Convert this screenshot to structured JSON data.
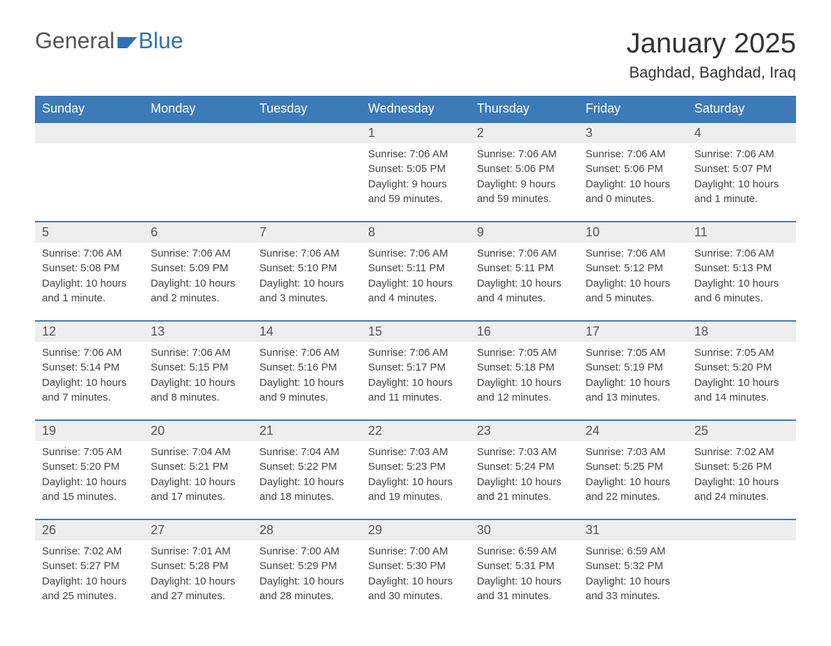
{
  "logo": {
    "text1": "General",
    "text2": "Blue"
  },
  "title": "January 2025",
  "location": "Baghdad, Baghdad, Iraq",
  "colors": {
    "header_bg": "#3d7ab8",
    "row_sep": "#3d7ab8",
    "daynum_bg": "#eeeeee",
    "text": "#333333",
    "logo_blue": "#2e72b5"
  },
  "daynames": [
    "Sunday",
    "Monday",
    "Tuesday",
    "Wednesday",
    "Thursday",
    "Friday",
    "Saturday"
  ],
  "weeks": [
    [
      null,
      null,
      null,
      {
        "n": "1",
        "sr": "Sunrise: 7:06 AM",
        "ss": "Sunset: 5:05 PM",
        "d1": "Daylight: 9 hours",
        "d2": "and 59 minutes."
      },
      {
        "n": "2",
        "sr": "Sunrise: 7:06 AM",
        "ss": "Sunset: 5:06 PM",
        "d1": "Daylight: 9 hours",
        "d2": "and 59 minutes."
      },
      {
        "n": "3",
        "sr": "Sunrise: 7:06 AM",
        "ss": "Sunset: 5:06 PM",
        "d1": "Daylight: 10 hours",
        "d2": "and 0 minutes."
      },
      {
        "n": "4",
        "sr": "Sunrise: 7:06 AM",
        "ss": "Sunset: 5:07 PM",
        "d1": "Daylight: 10 hours",
        "d2": "and 1 minute."
      }
    ],
    [
      {
        "n": "5",
        "sr": "Sunrise: 7:06 AM",
        "ss": "Sunset: 5:08 PM",
        "d1": "Daylight: 10 hours",
        "d2": "and 1 minute."
      },
      {
        "n": "6",
        "sr": "Sunrise: 7:06 AM",
        "ss": "Sunset: 5:09 PM",
        "d1": "Daylight: 10 hours",
        "d2": "and 2 minutes."
      },
      {
        "n": "7",
        "sr": "Sunrise: 7:06 AM",
        "ss": "Sunset: 5:10 PM",
        "d1": "Daylight: 10 hours",
        "d2": "and 3 minutes."
      },
      {
        "n": "8",
        "sr": "Sunrise: 7:06 AM",
        "ss": "Sunset: 5:11 PM",
        "d1": "Daylight: 10 hours",
        "d2": "and 4 minutes."
      },
      {
        "n": "9",
        "sr": "Sunrise: 7:06 AM",
        "ss": "Sunset: 5:11 PM",
        "d1": "Daylight: 10 hours",
        "d2": "and 4 minutes."
      },
      {
        "n": "10",
        "sr": "Sunrise: 7:06 AM",
        "ss": "Sunset: 5:12 PM",
        "d1": "Daylight: 10 hours",
        "d2": "and 5 minutes."
      },
      {
        "n": "11",
        "sr": "Sunrise: 7:06 AM",
        "ss": "Sunset: 5:13 PM",
        "d1": "Daylight: 10 hours",
        "d2": "and 6 minutes."
      }
    ],
    [
      {
        "n": "12",
        "sr": "Sunrise: 7:06 AM",
        "ss": "Sunset: 5:14 PM",
        "d1": "Daylight: 10 hours",
        "d2": "and 7 minutes."
      },
      {
        "n": "13",
        "sr": "Sunrise: 7:06 AM",
        "ss": "Sunset: 5:15 PM",
        "d1": "Daylight: 10 hours",
        "d2": "and 8 minutes."
      },
      {
        "n": "14",
        "sr": "Sunrise: 7:06 AM",
        "ss": "Sunset: 5:16 PM",
        "d1": "Daylight: 10 hours",
        "d2": "and 9 minutes."
      },
      {
        "n": "15",
        "sr": "Sunrise: 7:06 AM",
        "ss": "Sunset: 5:17 PM",
        "d1": "Daylight: 10 hours",
        "d2": "and 11 minutes."
      },
      {
        "n": "16",
        "sr": "Sunrise: 7:05 AM",
        "ss": "Sunset: 5:18 PM",
        "d1": "Daylight: 10 hours",
        "d2": "and 12 minutes."
      },
      {
        "n": "17",
        "sr": "Sunrise: 7:05 AM",
        "ss": "Sunset: 5:19 PM",
        "d1": "Daylight: 10 hours",
        "d2": "and 13 minutes."
      },
      {
        "n": "18",
        "sr": "Sunrise: 7:05 AM",
        "ss": "Sunset: 5:20 PM",
        "d1": "Daylight: 10 hours",
        "d2": "and 14 minutes."
      }
    ],
    [
      {
        "n": "19",
        "sr": "Sunrise: 7:05 AM",
        "ss": "Sunset: 5:20 PM",
        "d1": "Daylight: 10 hours",
        "d2": "and 15 minutes."
      },
      {
        "n": "20",
        "sr": "Sunrise: 7:04 AM",
        "ss": "Sunset: 5:21 PM",
        "d1": "Daylight: 10 hours",
        "d2": "and 17 minutes."
      },
      {
        "n": "21",
        "sr": "Sunrise: 7:04 AM",
        "ss": "Sunset: 5:22 PM",
        "d1": "Daylight: 10 hours",
        "d2": "and 18 minutes."
      },
      {
        "n": "22",
        "sr": "Sunrise: 7:03 AM",
        "ss": "Sunset: 5:23 PM",
        "d1": "Daylight: 10 hours",
        "d2": "and 19 minutes."
      },
      {
        "n": "23",
        "sr": "Sunrise: 7:03 AM",
        "ss": "Sunset: 5:24 PM",
        "d1": "Daylight: 10 hours",
        "d2": "and 21 minutes."
      },
      {
        "n": "24",
        "sr": "Sunrise: 7:03 AM",
        "ss": "Sunset: 5:25 PM",
        "d1": "Daylight: 10 hours",
        "d2": "and 22 minutes."
      },
      {
        "n": "25",
        "sr": "Sunrise: 7:02 AM",
        "ss": "Sunset: 5:26 PM",
        "d1": "Daylight: 10 hours",
        "d2": "and 24 minutes."
      }
    ],
    [
      {
        "n": "26",
        "sr": "Sunrise: 7:02 AM",
        "ss": "Sunset: 5:27 PM",
        "d1": "Daylight: 10 hours",
        "d2": "and 25 minutes."
      },
      {
        "n": "27",
        "sr": "Sunrise: 7:01 AM",
        "ss": "Sunset: 5:28 PM",
        "d1": "Daylight: 10 hours",
        "d2": "and 27 minutes."
      },
      {
        "n": "28",
        "sr": "Sunrise: 7:00 AM",
        "ss": "Sunset: 5:29 PM",
        "d1": "Daylight: 10 hours",
        "d2": "and 28 minutes."
      },
      {
        "n": "29",
        "sr": "Sunrise: 7:00 AM",
        "ss": "Sunset: 5:30 PM",
        "d1": "Daylight: 10 hours",
        "d2": "and 30 minutes."
      },
      {
        "n": "30",
        "sr": "Sunrise: 6:59 AM",
        "ss": "Sunset: 5:31 PM",
        "d1": "Daylight: 10 hours",
        "d2": "and 31 minutes."
      },
      {
        "n": "31",
        "sr": "Sunrise: 6:59 AM",
        "ss": "Sunset: 5:32 PM",
        "d1": "Daylight: 10 hours",
        "d2": "and 33 minutes."
      },
      null
    ]
  ]
}
